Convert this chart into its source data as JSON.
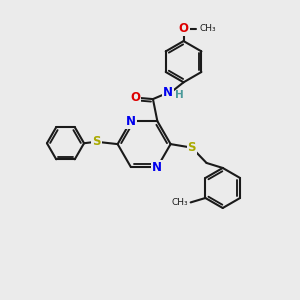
{
  "bg_color": "#ebebeb",
  "bond_color": "#1a1a1a",
  "bond_width": 1.5,
  "atom_colors": {
    "N": "#0000ee",
    "O": "#dd0000",
    "S": "#aaaa00",
    "C": "#1a1a1a",
    "H": "#4a9a9a"
  },
  "font_size_atom": 8.5
}
